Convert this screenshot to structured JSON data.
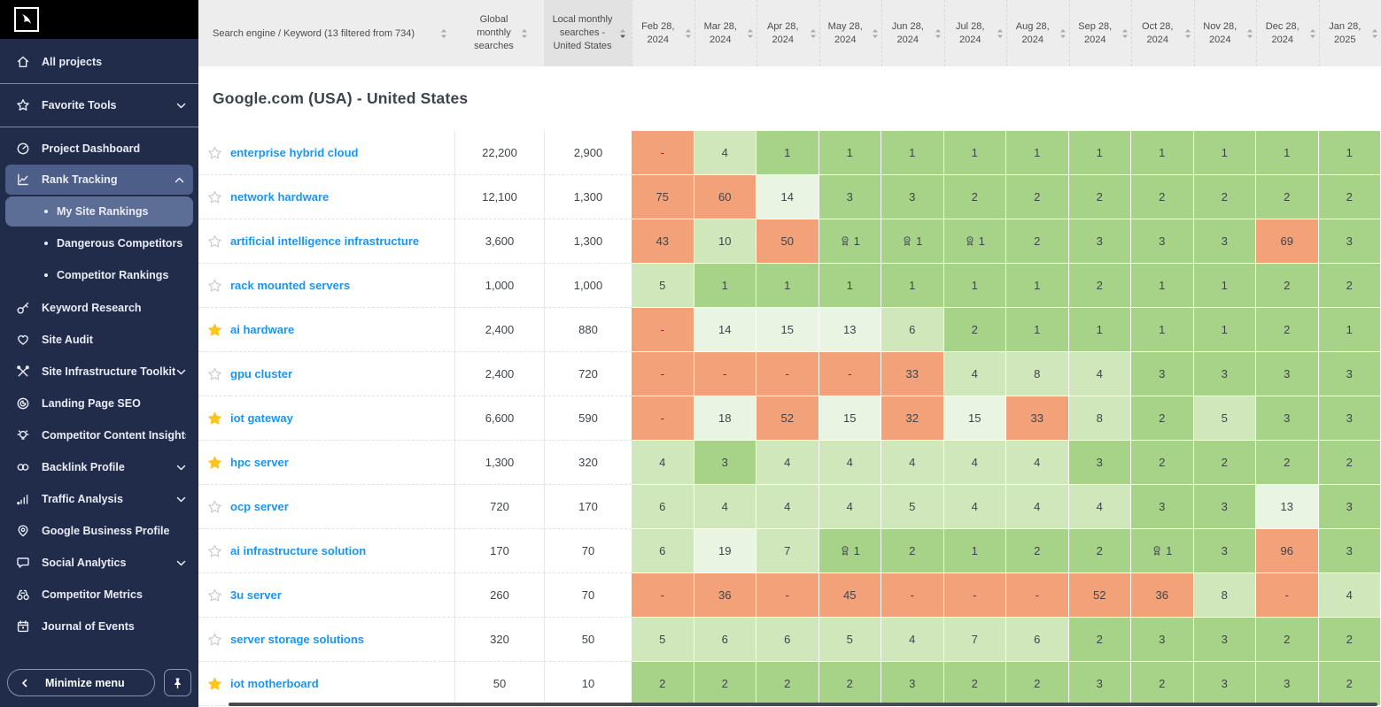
{
  "sidebar": {
    "items": [
      {
        "label": "All projects",
        "icon": "home",
        "divider_after": true
      },
      {
        "label": "Favorite Tools",
        "icon": "star",
        "chevron": "down",
        "divider_after": true
      },
      {
        "label": "Project Dashboard",
        "icon": "dashboard"
      },
      {
        "label": "Rank Tracking",
        "icon": "rank-chart",
        "chevron": "up",
        "active": true,
        "sub_items": [
          {
            "label": "My Site Rankings",
            "active": true
          },
          {
            "label": "Dangerous Competitors",
            "active": false
          },
          {
            "label": "Competitor Rankings",
            "active": false
          }
        ]
      },
      {
        "label": "Keyword Research",
        "icon": "key"
      },
      {
        "label": "Site Audit",
        "icon": "heart"
      },
      {
        "label": "Site Infrastructure Toolkit",
        "icon": "tools",
        "chevron": "down"
      },
      {
        "label": "Landing Page SEO",
        "icon": "landing"
      },
      {
        "label": "Competitor Content Insights",
        "icon": "bulb"
      },
      {
        "label": "Backlink Profile",
        "icon": "links",
        "chevron": "down"
      },
      {
        "label": "Traffic Analysis",
        "icon": "bars",
        "chevron": "down"
      },
      {
        "label": "Google Business Profile",
        "icon": "pin"
      },
      {
        "label": "Social Analytics",
        "icon": "chat",
        "chevron": "down"
      },
      {
        "label": "Competitor Metrics",
        "icon": "binoculars"
      },
      {
        "label": "Journal of Events",
        "icon": "calendar"
      }
    ],
    "minimize_label": "Minimize menu"
  },
  "table": {
    "keyword_header": "Search engine / Keyword (13 filtered from 734)",
    "global_header": "Global monthly searches",
    "local_header": "Local monthly searches - United States",
    "section_title": "Google.com (USA) - United States",
    "dates": [
      "Feb 28,|2024",
      "Mar 28,|2024",
      "Apr 28,|2024",
      "May 28,|2024",
      "Jun 28,|2024",
      "Jul 28,|2024",
      "Aug 28,|2024",
      "Sep 28,|2024",
      "Oct 28,|2024",
      "Nov 28,|2024",
      "Dec 28,|2024",
      "Jan 28,|2025"
    ],
    "rows": [
      {
        "keyword": "enterprise hybrid cloud",
        "starred": false,
        "global": "22,200",
        "local": "2,900",
        "ranks": [
          "-",
          4,
          1,
          1,
          1,
          1,
          1,
          1,
          1,
          1,
          1,
          1
        ],
        "medals": []
      },
      {
        "keyword": "network hardware",
        "starred": false,
        "global": "12,100",
        "local": "1,300",
        "ranks": [
          75,
          60,
          14,
          3,
          3,
          2,
          2,
          2,
          2,
          2,
          2,
          2
        ],
        "medals": []
      },
      {
        "keyword": "artificial intelligence infrastructure",
        "starred": false,
        "global": "3,600",
        "local": "1,300",
        "ranks": [
          43,
          10,
          50,
          1,
          1,
          1,
          2,
          3,
          3,
          3,
          69,
          3
        ],
        "medals": [
          3,
          4,
          5
        ]
      },
      {
        "keyword": "rack mounted servers",
        "starred": false,
        "global": "1,000",
        "local": "1,000",
        "ranks": [
          5,
          1,
          1,
          1,
          1,
          1,
          1,
          2,
          1,
          1,
          2,
          2
        ],
        "medals": []
      },
      {
        "keyword": "ai hardware",
        "starred": true,
        "global": "2,400",
        "local": "880",
        "ranks": [
          "-",
          14,
          15,
          13,
          6,
          2,
          1,
          1,
          1,
          1,
          2,
          1
        ],
        "medals": []
      },
      {
        "keyword": "gpu cluster",
        "starred": false,
        "global": "2,400",
        "local": "720",
        "ranks": [
          "-",
          "-",
          "-",
          "-",
          33,
          4,
          8,
          4,
          3,
          3,
          3,
          3
        ],
        "medals": []
      },
      {
        "keyword": "iot gateway",
        "starred": true,
        "global": "6,600",
        "local": "590",
        "ranks": [
          "-",
          18,
          52,
          15,
          32,
          15,
          33,
          8,
          2,
          5,
          3,
          3
        ],
        "medals": []
      },
      {
        "keyword": "hpc server",
        "starred": true,
        "global": "1,300",
        "local": "320",
        "ranks": [
          4,
          3,
          4,
          4,
          4,
          4,
          4,
          3,
          2,
          2,
          2,
          2
        ],
        "medals": []
      },
      {
        "keyword": "ocp server",
        "starred": false,
        "global": "720",
        "local": "170",
        "ranks": [
          6,
          4,
          4,
          4,
          5,
          4,
          4,
          4,
          3,
          3,
          13,
          3
        ],
        "medals": []
      },
      {
        "keyword": "ai infrastructure solution",
        "starred": false,
        "global": "170",
        "local": "70",
        "ranks": [
          6,
          19,
          7,
          1,
          2,
          1,
          2,
          2,
          1,
          3,
          96,
          3
        ],
        "medals": [
          3,
          8
        ]
      },
      {
        "keyword": "3u server",
        "starred": false,
        "global": "260",
        "local": "70",
        "ranks": [
          "-",
          36,
          "-",
          45,
          "-",
          "-",
          "-",
          52,
          36,
          8,
          "-",
          4
        ],
        "medals": []
      },
      {
        "keyword": "server storage solutions",
        "starred": false,
        "global": "320",
        "local": "50",
        "ranks": [
          5,
          6,
          6,
          5,
          4,
          7,
          6,
          2,
          3,
          3,
          2,
          2
        ],
        "medals": []
      },
      {
        "keyword": "iot motherboard",
        "starred": true,
        "global": "50",
        "local": "10",
        "ranks": [
          2,
          2,
          2,
          2,
          3,
          2,
          2,
          3,
          2,
          3,
          3,
          2
        ],
        "medals": []
      }
    ]
  },
  "colors": {
    "rank_top3_green": "#a6d387",
    "rank_4_10_green": "#cfe7bb",
    "rank_11_20_green": "#eaf4e3",
    "rank_out_orange": "#f2a178",
    "sidebar_bg": "#202c4a",
    "sidebar_highlight": "#4d5f88",
    "keyword_link_blue": "#1b95f2",
    "favorite_star_yellow": "#fcc41f"
  }
}
